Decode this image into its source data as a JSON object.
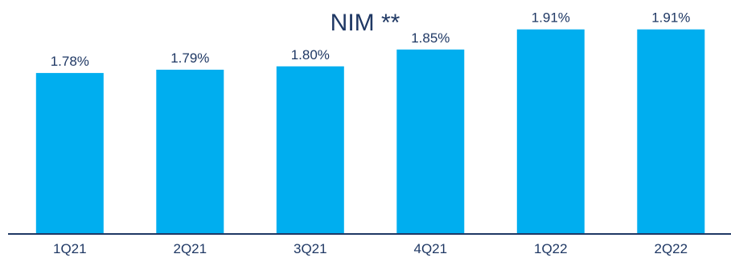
{
  "chart_data": {
    "type": "bar",
    "title": "NIM **",
    "categories": [
      "1Q21",
      "2Q21",
      "3Q21",
      "4Q21",
      "1Q22",
      "2Q22"
    ],
    "values": [
      1.78,
      1.79,
      1.8,
      1.85,
      1.91,
      1.91
    ],
    "value_labels": [
      "1.78%",
      "1.79%",
      "1.80%",
      "1.85%",
      "1.91%",
      "1.91%"
    ],
    "xlabel": "",
    "ylabel": "",
    "ylim": [
      1.3,
      1.95
    ],
    "grid": false,
    "legend": "none",
    "colors": {
      "bar": "#00AEEF",
      "title": "#1F3864",
      "text": "#1F3864",
      "axis": "#1F3864"
    }
  }
}
